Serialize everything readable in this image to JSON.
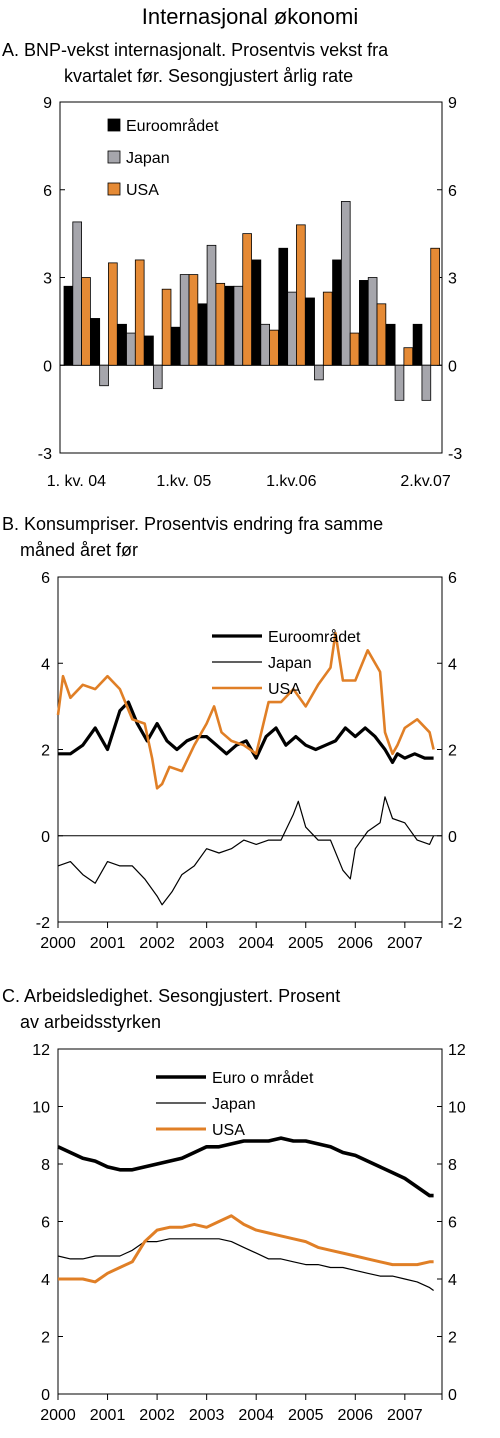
{
  "figure_title": "Internasjonal økonomi",
  "colors": {
    "euro": "#000000",
    "japan": "#a6a6ac",
    "usa": "#e58a35",
    "line_euro": "#000000",
    "line_japan": "#000000",
    "line_usa": "#e07f26"
  },
  "chart_data": [
    {
      "type": "bar",
      "title_line1": "A. BNP-vekst internasjonalt. Prosentvis vekst fra",
      "title_line2": "kvartalet før. Sesongjustert årlig rate",
      "categories": [
        "Q1 04",
        "Q2 04",
        "Q3 04",
        "Q4 04",
        "Q1 05",
        "Q2 05",
        "Q3 05",
        "Q4 05",
        "Q1 06",
        "Q2 06",
        "Q3 06",
        "Q4 06",
        "Q1 07",
        "Q2 07"
      ],
      "x_tick_labels": [
        "1. kv. 04",
        "1.kv. 05",
        "1.kv.06",
        "2.kv.07"
      ],
      "x_tick_category_index": [
        0,
        4,
        8,
        13
      ],
      "ylim": [
        -3,
        9
      ],
      "yticks": [
        -3,
        0,
        3,
        6,
        9
      ],
      "legend": [
        "Euroområdet",
        "Japan",
        "USA"
      ],
      "series": [
        {
          "name": "Euroområdet",
          "values": [
            2.7,
            1.6,
            1.4,
            1.0,
            1.3,
            2.1,
            2.7,
            3.6,
            4.0,
            2.3,
            3.6,
            2.9,
            1.4,
            1.4
          ]
        },
        {
          "name": "Japan",
          "values": [
            4.9,
            -0.7,
            1.1,
            -0.8,
            3.1,
            4.1,
            2.7,
            1.4,
            2.5,
            -0.5,
            5.6,
            3.0,
            -1.2,
            -1.2
          ]
        },
        {
          "name": "USA",
          "values": [
            3.0,
            3.5,
            3.6,
            2.6,
            3.1,
            2.8,
            4.5,
            1.2,
            4.8,
            2.5,
            1.1,
            2.1,
            0.6,
            4.0
          ]
        }
      ]
    },
    {
      "type": "line",
      "title_line1": "B. Konsumpriser. Prosentvis endring fra samme",
      "title_line2": "måned året før",
      "x_tick_labels": [
        "2000",
        "2001",
        "2002",
        "2003",
        "2004",
        "2005",
        "2006",
        "2007"
      ],
      "xlim": [
        2000,
        2007.75
      ],
      "ylim": [
        -2,
        6
      ],
      "yticks": [
        -2,
        0,
        2,
        4,
        6
      ],
      "legend": [
        "Euroområdet",
        "Japan",
        "USA"
      ],
      "series": [
        {
          "name": "Euroområdet",
          "x": [
            2000,
            2000.25,
            2000.5,
            2000.75,
            2001,
            2001.25,
            2001.42,
            2001.6,
            2001.8,
            2002,
            2002.2,
            2002.4,
            2002.6,
            2002.8,
            2003,
            2003.2,
            2003.4,
            2003.6,
            2003.8,
            2004,
            2004.2,
            2004.4,
            2004.6,
            2004.8,
            2005,
            2005.2,
            2005.4,
            2005.6,
            2005.8,
            2006,
            2006.2,
            2006.4,
            2006.6,
            2006.75,
            2006.85,
            2007,
            2007.2,
            2007.4,
            2007.58
          ],
          "y": [
            1.9,
            1.9,
            2.1,
            2.5,
            2.0,
            2.9,
            3.1,
            2.6,
            2.2,
            2.6,
            2.2,
            2.0,
            2.2,
            2.3,
            2.3,
            2.1,
            1.9,
            2.1,
            2.2,
            1.8,
            2.3,
            2.5,
            2.1,
            2.3,
            2.1,
            2.0,
            2.1,
            2.2,
            2.5,
            2.3,
            2.5,
            2.3,
            2.0,
            1.7,
            1.9,
            1.8,
            1.9,
            1.8,
            1.8
          ]
        },
        {
          "name": "Japan",
          "x": [
            2000,
            2000.25,
            2000.5,
            2000.75,
            2001,
            2001.25,
            2001.5,
            2001.75,
            2002,
            2002.1,
            2002.3,
            2002.5,
            2002.75,
            2003,
            2003.25,
            2003.5,
            2003.75,
            2004,
            2004.25,
            2004.5,
            2004.75,
            2004.85,
            2005,
            2005.25,
            2005.5,
            2005.75,
            2005.9,
            2006,
            2006.25,
            2006.5,
            2006.6,
            2006.75,
            2007,
            2007.25,
            2007.5,
            2007.58
          ],
          "y": [
            -0.7,
            -0.6,
            -0.9,
            -1.1,
            -0.6,
            -0.7,
            -0.7,
            -1.0,
            -1.4,
            -1.6,
            -1.3,
            -0.9,
            -0.7,
            -0.3,
            -0.4,
            -0.3,
            -0.1,
            -0.2,
            -0.1,
            -0.1,
            0.5,
            0.8,
            0.2,
            -0.1,
            -0.1,
            -0.8,
            -1.0,
            -0.3,
            0.1,
            0.3,
            0.9,
            0.4,
            0.3,
            -0.1,
            -0.2,
            0.0
          ]
        },
        {
          "name": "USA",
          "x": [
            2000,
            2000.1,
            2000.25,
            2000.5,
            2000.75,
            2001,
            2001.25,
            2001.5,
            2001.75,
            2001.9,
            2002,
            2002.1,
            2002.25,
            2002.5,
            2002.75,
            2003,
            2003.15,
            2003.3,
            2003.5,
            2003.75,
            2004,
            2004.25,
            2004.5,
            2004.75,
            2005,
            2005.25,
            2005.5,
            2005.6,
            2005.75,
            2006,
            2006.25,
            2006.5,
            2006.6,
            2006.75,
            2006.85,
            2007,
            2007.25,
            2007.5,
            2007.58
          ],
          "y": [
            2.8,
            3.7,
            3.2,
            3.5,
            3.4,
            3.7,
            3.4,
            2.7,
            2.6,
            1.8,
            1.1,
            1.2,
            1.6,
            1.5,
            2.1,
            2.6,
            3.0,
            2.4,
            2.2,
            2.1,
            1.9,
            3.1,
            3.1,
            3.4,
            3.0,
            3.5,
            3.9,
            4.7,
            3.6,
            3.6,
            4.3,
            3.8,
            2.4,
            1.9,
            2.1,
            2.5,
            2.7,
            2.4,
            2.0
          ]
        }
      ]
    },
    {
      "type": "line",
      "title_line1": "C. Arbeidsledighet. Sesongjustert. Prosent",
      "title_line2": "av arbeidsstyrken",
      "x_tick_labels": [
        "2000",
        "2001",
        "2002",
        "2003",
        "2004",
        "2005",
        "2006",
        "2007"
      ],
      "xlim": [
        2000,
        2007.75
      ],
      "ylim": [
        0,
        12
      ],
      "yticks": [
        0,
        2,
        4,
        6,
        8,
        10,
        12
      ],
      "legend": [
        "Euro o mrådet",
        "Japan",
        "USA"
      ],
      "series": [
        {
          "name": "Euro o mrådet",
          "x": [
            2000,
            2000.25,
            2000.5,
            2000.75,
            2001,
            2001.25,
            2001.5,
            2001.75,
            2002,
            2002.25,
            2002.5,
            2002.75,
            2003,
            2003.25,
            2003.5,
            2003.75,
            2004,
            2004.25,
            2004.5,
            2004.75,
            2005,
            2005.25,
            2005.5,
            2005.75,
            2006,
            2006.25,
            2006.5,
            2006.75,
            2007,
            2007.25,
            2007.5,
            2007.58
          ],
          "y": [
            8.6,
            8.4,
            8.2,
            8.1,
            7.9,
            7.8,
            7.8,
            7.9,
            8.0,
            8.1,
            8.2,
            8.4,
            8.6,
            8.6,
            8.7,
            8.8,
            8.8,
            8.8,
            8.9,
            8.8,
            8.8,
            8.7,
            8.6,
            8.4,
            8.3,
            8.1,
            7.9,
            7.7,
            7.5,
            7.2,
            6.9,
            6.9
          ]
        },
        {
          "name": "Japan",
          "x": [
            2000,
            2000.25,
            2000.5,
            2000.75,
            2001,
            2001.25,
            2001.5,
            2001.75,
            2002,
            2002.25,
            2002.5,
            2002.75,
            2003,
            2003.25,
            2003.5,
            2003.75,
            2004,
            2004.25,
            2004.5,
            2004.75,
            2005,
            2005.25,
            2005.5,
            2005.75,
            2006,
            2006.25,
            2006.5,
            2006.75,
            2007,
            2007.25,
            2007.5,
            2007.58
          ],
          "y": [
            4.8,
            4.7,
            4.7,
            4.8,
            4.8,
            4.8,
            5.0,
            5.3,
            5.3,
            5.4,
            5.4,
            5.4,
            5.4,
            5.4,
            5.3,
            5.1,
            4.9,
            4.7,
            4.7,
            4.6,
            4.5,
            4.5,
            4.4,
            4.4,
            4.3,
            4.2,
            4.1,
            4.1,
            4.0,
            3.9,
            3.7,
            3.6
          ]
        },
        {
          "name": "USA",
          "x": [
            2000,
            2000.25,
            2000.5,
            2000.75,
            2001,
            2001.25,
            2001.5,
            2001.75,
            2002,
            2002.25,
            2002.5,
            2002.75,
            2003,
            2003.25,
            2003.5,
            2003.75,
            2004,
            2004.25,
            2004.5,
            2004.75,
            2005,
            2005.25,
            2005.5,
            2005.75,
            2006,
            2006.25,
            2006.5,
            2006.75,
            2007,
            2007.25,
            2007.5,
            2007.58
          ],
          "y": [
            4.0,
            4.0,
            4.0,
            3.9,
            4.2,
            4.4,
            4.6,
            5.3,
            5.7,
            5.8,
            5.8,
            5.9,
            5.8,
            6.0,
            6.2,
            5.9,
            5.7,
            5.6,
            5.5,
            5.4,
            5.3,
            5.1,
            5.0,
            4.9,
            4.8,
            4.7,
            4.6,
            4.5,
            4.5,
            4.5,
            4.6,
            4.6
          ]
        }
      ]
    }
  ]
}
